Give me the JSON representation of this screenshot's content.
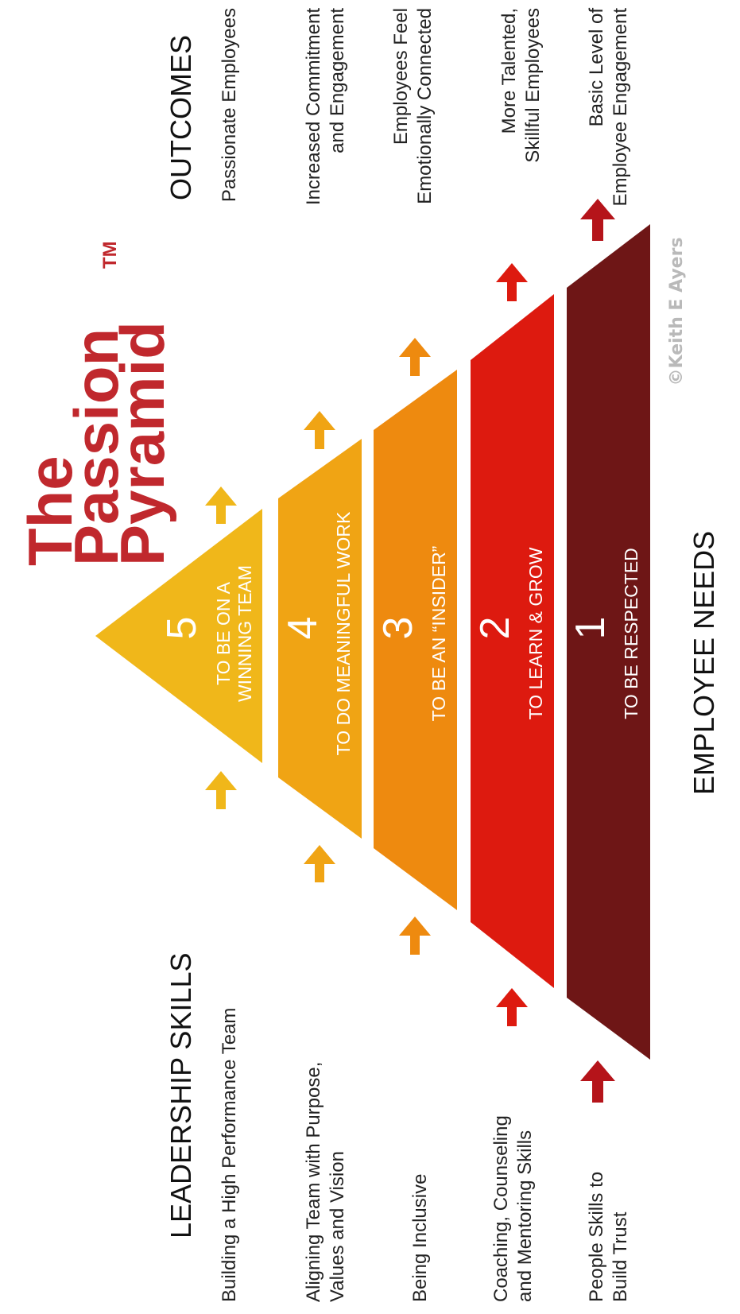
{
  "title": {
    "line1": "The",
    "line2": "Passion",
    "line3": "Pyramid",
    "tm": "TM"
  },
  "headers": {
    "outcomes": "OUTCOMES",
    "leadership": "LEADERSHIP SKILLS",
    "needs": "EMPLOYEE NEEDS"
  },
  "levels": [
    {
      "number": "5",
      "need_lines": [
        "TO BE ON A",
        "WINNING TEAM"
      ],
      "color": "#f0b71a",
      "skill_lines": [
        "Building a High Performance Team"
      ],
      "outcome_lines": [
        "Passionate Employees"
      ]
    },
    {
      "number": "4",
      "need_lines": [
        "TO DO MEANINGFUL WORK"
      ],
      "color": "#f0a414",
      "skill_lines": [
        "Aligning Team with Purpose,",
        "Values and Vision"
      ],
      "outcome_lines": [
        "Increased Commitment",
        "and Engagement"
      ]
    },
    {
      "number": "3",
      "need_lines": [
        "TO BE AN “INSIDER”"
      ],
      "color": "#ee8a0f",
      "skill_lines": [
        "Being Inclusive"
      ],
      "outcome_lines": [
        "Employees Feel",
        "Emotionally Connected"
      ]
    },
    {
      "number": "2",
      "need_lines": [
        "TO LEARN & GROW"
      ],
      "color": "#dd1a0f",
      "skill_lines": [
        "Coaching, Counseling",
        "and Mentoring Skills"
      ],
      "outcome_lines": [
        "More Talented,",
        "Skillful Employees"
      ]
    },
    {
      "number": "1",
      "need_lines": [
        "TO BE RESPECTED"
      ],
      "color": "#6e1616",
      "skill_lines": [
        "People Skills to",
        "Build Trust"
      ],
      "outcome_lines": [
        "Basic Level of",
        "Employee Engagement"
      ]
    }
  ],
  "copyright": "©Keith E Ayers"
}
